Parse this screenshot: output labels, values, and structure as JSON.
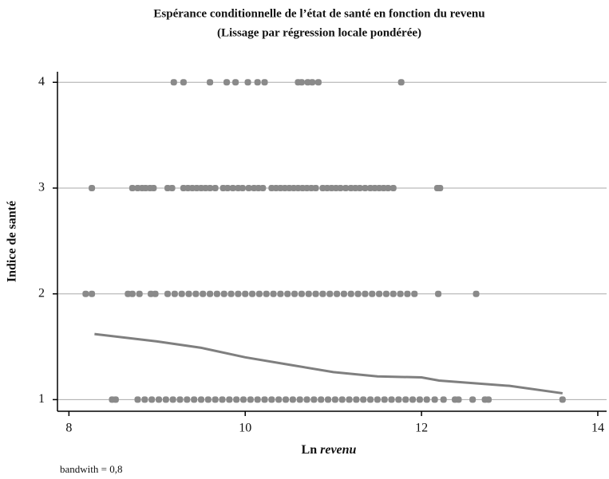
{
  "chart_data": {
    "type": "scatter",
    "title": [
      "Espérance conditionnelle de l’état de santé en fonction du revenu",
      "(Lissage par régression locale pondérée)"
    ],
    "x_label": [
      "Ln",
      "revenu"
    ],
    "y_label": "Indice de santé",
    "note": "bandwith = 0,8",
    "xlim": [
      7.87,
      14.1
    ],
    "ylim": [
      0.89,
      4.1
    ],
    "xticks": [
      8,
      10,
      12,
      14
    ],
    "yticks": [
      1,
      2,
      3,
      4
    ],
    "grid": true,
    "series": [
      {
        "type": "scatter",
        "color": "#8a8a8a",
        "x": [
          9.19,
          9.3,
          9.6,
          9.79,
          9.89,
          10.03,
          10.14,
          10.22,
          10.6,
          10.64,
          10.71,
          10.76,
          10.83,
          11.77
        ],
        "values": [
          4,
          4,
          4,
          4,
          4,
          4,
          4,
          4,
          4,
          4,
          4,
          4,
          4,
          4
        ]
      },
      {
        "type": "scatter",
        "color": "#8a8a8a",
        "x": [
          8.26,
          8.72,
          8.78,
          8.83,
          8.87,
          8.92,
          8.96,
          9.12,
          9.17,
          9.3,
          9.35,
          9.4,
          9.45,
          9.5,
          9.55,
          9.6,
          9.66,
          9.75,
          9.8,
          9.86,
          9.92,
          9.97,
          10.04,
          10.1,
          10.15,
          10.2,
          10.3,
          10.35,
          10.4,
          10.45,
          10.5,
          10.55,
          10.6,
          10.65,
          10.7,
          10.75,
          10.8,
          10.88,
          10.93,
          10.98,
          11.03,
          11.08,
          11.14,
          11.2,
          11.25,
          11.3,
          11.36,
          11.42,
          11.47,
          11.52,
          11.57,
          11.62,
          11.68,
          12.18,
          12.21
        ],
        "values": [
          3,
          3,
          3,
          3,
          3,
          3,
          3,
          3,
          3,
          3,
          3,
          3,
          3,
          3,
          3,
          3,
          3,
          3,
          3,
          3,
          3,
          3,
          3,
          3,
          3,
          3,
          3,
          3,
          3,
          3,
          3,
          3,
          3,
          3,
          3,
          3,
          3,
          3,
          3,
          3,
          3,
          3,
          3,
          3,
          3,
          3,
          3,
          3,
          3,
          3,
          3,
          3,
          3,
          3,
          3
        ]
      },
      {
        "type": "scatter",
        "color": "#8a8a8a",
        "x": [
          8.19,
          8.26,
          8.67,
          8.72,
          8.8,
          8.93,
          8.98,
          9.12,
          9.2,
          9.28,
          9.36,
          9.44,
          9.52,
          9.6,
          9.68,
          9.76,
          9.84,
          9.92,
          10.0,
          10.08,
          10.16,
          10.24,
          10.32,
          10.4,
          10.48,
          10.56,
          10.64,
          10.72,
          10.8,
          10.88,
          10.96,
          11.04,
          11.12,
          11.2,
          11.28,
          11.36,
          11.44,
          11.52,
          11.6,
          11.68,
          11.76,
          11.84,
          11.92,
          12.19,
          12.62
        ],
        "values": [
          2,
          2,
          2,
          2,
          2,
          2,
          2,
          2,
          2,
          2,
          2,
          2,
          2,
          2,
          2,
          2,
          2,
          2,
          2,
          2,
          2,
          2,
          2,
          2,
          2,
          2,
          2,
          2,
          2,
          2,
          2,
          2,
          2,
          2,
          2,
          2,
          2,
          2,
          2,
          2,
          2,
          2,
          2,
          2,
          2
        ]
      },
      {
        "type": "scatter",
        "color": "#8a8a8a",
        "x": [
          8.49,
          8.53,
          8.78,
          8.86,
          8.94,
          9.02,
          9.1,
          9.18,
          9.26,
          9.34,
          9.42,
          9.5,
          9.58,
          9.66,
          9.74,
          9.82,
          9.9,
          9.98,
          10.06,
          10.14,
          10.22,
          10.3,
          10.38,
          10.46,
          10.54,
          10.62,
          10.7,
          10.78,
          10.86,
          10.94,
          11.02,
          11.1,
          11.18,
          11.26,
          11.34,
          11.42,
          11.5,
          11.58,
          11.66,
          11.74,
          11.82,
          11.9,
          11.98,
          12.06,
          12.15,
          12.25,
          12.38,
          12.42,
          12.58,
          12.72,
          12.76,
          13.6
        ],
        "values": [
          1,
          1,
          1,
          1,
          1,
          1,
          1,
          1,
          1,
          1,
          1,
          1,
          1,
          1,
          1,
          1,
          1,
          1,
          1,
          1,
          1,
          1,
          1,
          1,
          1,
          1,
          1,
          1,
          1,
          1,
          1,
          1,
          1,
          1,
          1,
          1,
          1,
          1,
          1,
          1,
          1,
          1,
          1,
          1,
          1,
          1,
          1,
          1,
          1,
          1,
          1,
          1
        ]
      },
      {
        "type": "line",
        "color": "#7f7f7f",
        "x": [
          8.29,
          9.0,
          9.5,
          10.0,
          10.5,
          11.0,
          11.5,
          12.0,
          12.2,
          13.0,
          13.6
        ],
        "values": [
          1.62,
          1.55,
          1.49,
          1.4,
          1.33,
          1.26,
          1.22,
          1.21,
          1.18,
          1.13,
          1.06
        ]
      }
    ]
  }
}
